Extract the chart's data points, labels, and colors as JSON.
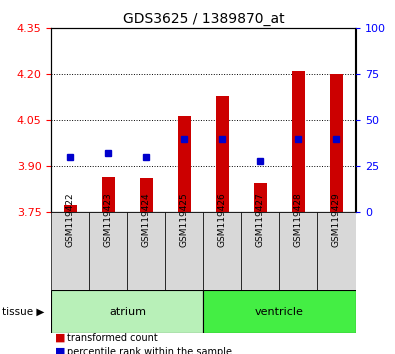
{
  "title": "GDS3625 / 1389870_at",
  "samples": [
    "GSM119422",
    "GSM119423",
    "GSM119424",
    "GSM119425",
    "GSM119426",
    "GSM119427",
    "GSM119428",
    "GSM119429"
  ],
  "transformed_count": [
    3.775,
    3.865,
    3.862,
    4.065,
    4.13,
    3.845,
    4.21,
    4.2
  ],
  "percentile_rank": [
    30,
    32,
    30,
    40,
    40,
    28,
    40,
    40
  ],
  "bar_bottom": 3.75,
  "ylim_left": [
    3.75,
    4.35
  ],
  "ylim_right": [
    0,
    100
  ],
  "yticks_left": [
    3.75,
    3.9,
    4.05,
    4.2,
    4.35
  ],
  "yticks_right": [
    0,
    25,
    50,
    75,
    100
  ],
  "bar_color": "#cc0000",
  "dot_color": "#0000cc",
  "groups": [
    {
      "label": "atrium",
      "indices": [
        0,
        1,
        2,
        3
      ],
      "color": "#b8f0b8"
    },
    {
      "label": "ventricle",
      "indices": [
        4,
        5,
        6,
        7
      ],
      "color": "#44ee44"
    }
  ],
  "tissue_label": "tissue",
  "sample_bg_color": "#d8d8d8",
  "plot_bg": "#ffffff",
  "legend_items": [
    {
      "label": "transformed count",
      "color": "#cc0000"
    },
    {
      "label": "percentile rank within the sample",
      "color": "#0000cc"
    }
  ]
}
